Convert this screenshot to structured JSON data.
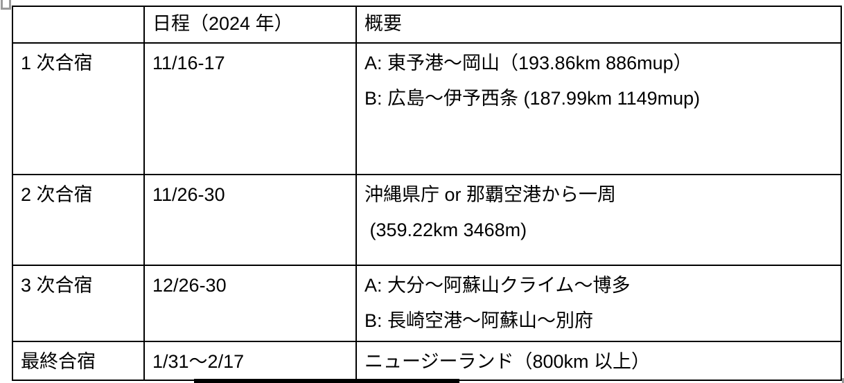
{
  "table": {
    "border_color": "#000000",
    "text_color": "#000000",
    "background": "#ffffff",
    "columns": [
      {
        "header": ""
      },
      {
        "header": "日程（2024 年）"
      },
      {
        "header": "概要"
      }
    ],
    "rows": [
      {
        "name": "1 次合宿",
        "date": "11/16-17",
        "overview": [
          "A: 東予港～岡山（193.86km 886mup）",
          "B: 広島～伊予西条 (187.99km 1149mup)"
        ]
      },
      {
        "name": "2 次合宿",
        "date": "11/26-30",
        "overview": [
          "沖縄県庁 or 那覇空港から一周",
          " (359.22km 3468m)"
        ]
      },
      {
        "name": "3 次合宿",
        "date": "12/26-30",
        "overview": [
          "A: 大分～阿蘇山クライム～博多",
          "B: 長崎空港～阿蘇山～別府"
        ]
      },
      {
        "name": "最終合宿",
        "date": "1/31～2/17",
        "overview": [
          "ニュージーランド（800km 以上）"
        ]
      }
    ]
  },
  "decorations": {
    "handle_color": "#9a9a9a",
    "bottom_bar_color": "#000000"
  }
}
